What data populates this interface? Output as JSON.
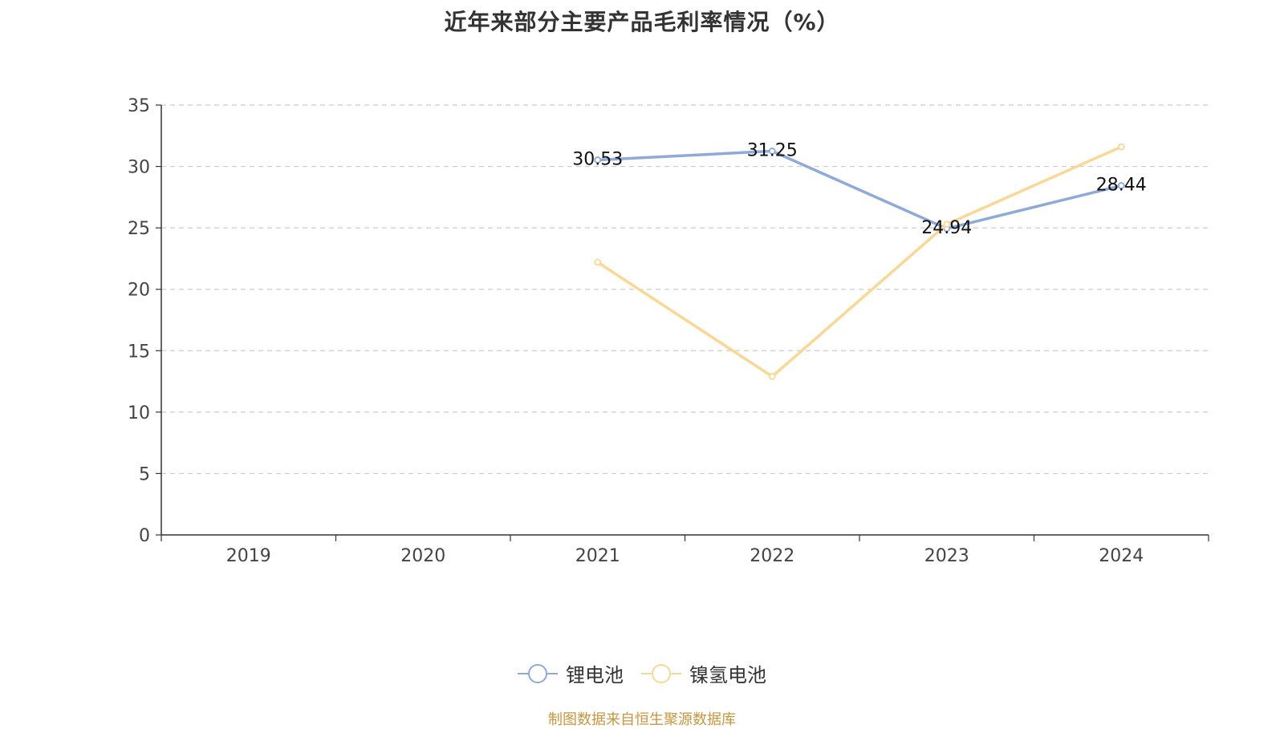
{
  "chart_data": {
    "type": "line",
    "title": "近年来部分主要产品毛利率情况（%）",
    "categories": [
      "2019",
      "2020",
      "2021",
      "2022",
      "2023",
      "2024"
    ],
    "ylim": [
      0,
      35
    ],
    "yticks": [
      0,
      5,
      10,
      15,
      20,
      25,
      30,
      35
    ],
    "grid": true,
    "legend_position": "bottom-center",
    "series": [
      {
        "name": "锂电池",
        "color": "#8eaad8",
        "values": [
          null,
          null,
          30.53,
          31.25,
          24.94,
          28.44
        ],
        "data_labels": [
          null,
          null,
          "30.53",
          "31.25",
          "24.94",
          "28.44"
        ]
      },
      {
        "name": "镍氢电池",
        "color": "#fbd794",
        "values": [
          null,
          null,
          22.2,
          12.9,
          25.3,
          31.6
        ],
        "data_labels": [
          null,
          null,
          null,
          null,
          null,
          null
        ]
      }
    ]
  },
  "footer": {
    "source": "制图数据来自恒生聚源数据库",
    "source_color": "#c8963c"
  }
}
